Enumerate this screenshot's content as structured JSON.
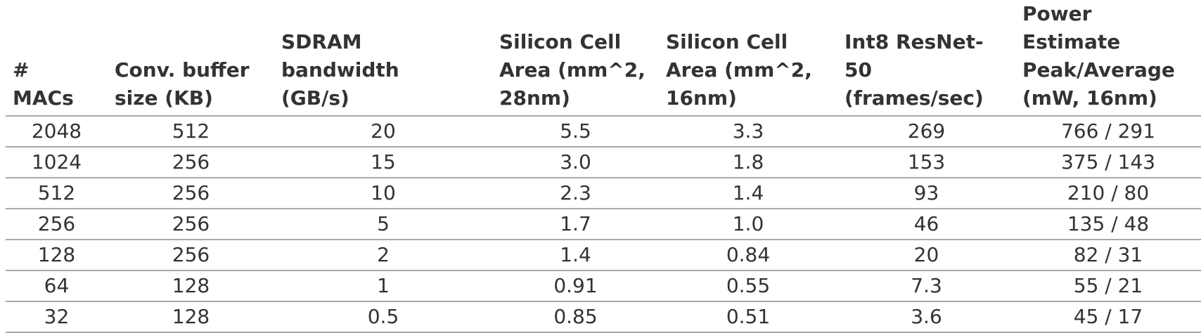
{
  "table": {
    "headers": [
      "#\nMACs",
      "Conv. buffer\nsize (KB)",
      "SDRAM\nbandwidth\n(GB/s)",
      "Silicon Cell\nArea (mm^2,\n28nm)",
      "Silicon Cell\nArea (mm^2,\n16nm)",
      "Int8 ResNet-\n50\n(frames/sec)",
      "Power Estimate\nPeak/Average\n(mW, 16nm)"
    ],
    "rows": [
      [
        "2048",
        "512",
        "20",
        "5.5",
        "3.3",
        "269",
        "766 / 291"
      ],
      [
        "1024",
        "256",
        "15",
        "3.0",
        "1.8",
        "153",
        "375 / 143"
      ],
      [
        "512",
        "256",
        "10",
        "2.3",
        "1.4",
        "93",
        "210 / 80"
      ],
      [
        "256",
        "256",
        "5",
        "1.7",
        "1.0",
        "46",
        "135 / 48"
      ],
      [
        "128",
        "256",
        "2",
        "1.4",
        "0.84",
        "20",
        "82 / 31"
      ],
      [
        "64",
        "128",
        "1",
        "0.91",
        "0.55",
        "7.3",
        "55 / 21"
      ],
      [
        "32",
        "128",
        "0.5",
        "0.85",
        "0.51",
        "3.6",
        "45 / 17"
      ]
    ]
  },
  "colors": {
    "text": "#333333",
    "rule": "#a8a8a8",
    "background": "#ffffff"
  }
}
